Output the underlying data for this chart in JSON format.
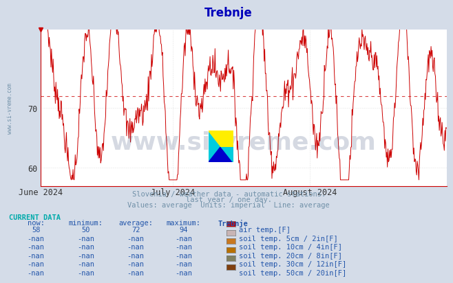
{
  "title": "Trebnje",
  "subtitle1": "Slovenia / weather data - automatic stations.",
  "subtitle2": "last year / one day.",
  "subtitle3": "Values: average  Units: imperial  Line: average",
  "ylabel_text": "www.si-vreme.com",
  "bg_color": "#d4dce8",
  "plot_bg_color": "#ffffff",
  "line_color": "#cc0000",
  "avg_line_color": "#cc0000",
  "avg_value": 72,
  "ymin": 57,
  "ymax": 83,
  "yticks": [
    60,
    70
  ],
  "xmin": 0,
  "xmax": 92,
  "title_color": "#0000bb",
  "subtitle_color": "#7090a8",
  "axis_color": "#cc0000",
  "grid_color": "#cccccc",
  "watermark_text": "www.si-vreme.com",
  "watermark_color": "#1a3060",
  "watermark_alpha": 0.18,
  "current_data_label": "CURRENT DATA",
  "col_headers": [
    "now:",
    "minimum:",
    "average:",
    "maximum:",
    "Trebnje"
  ],
  "rows": [
    {
      "now": "58",
      "minimum": "50",
      "average": "72",
      "maximum": "94",
      "color": "#cc0000",
      "label": "air temp.[F]"
    },
    {
      "now": "-nan",
      "minimum": "-nan",
      "average": "-nan",
      "maximum": "-nan",
      "color": "#c8b4b4",
      "label": "soil temp. 5cm / 2in[F]"
    },
    {
      "now": "-nan",
      "minimum": "-nan",
      "average": "-nan",
      "maximum": "-nan",
      "color": "#c87820",
      "label": "soil temp. 10cm / 4in[F]"
    },
    {
      "now": "-nan",
      "minimum": "-nan",
      "average": "-nan",
      "maximum": "-nan",
      "color": "#b87000",
      "label": "soil temp. 20cm / 8in[F]"
    },
    {
      "now": "-nan",
      "minimum": "-nan",
      "average": "-nan",
      "maximum": "-nan",
      "color": "#808060",
      "label": "soil temp. 30cm / 12in[F]"
    },
    {
      "now": "-nan",
      "minimum": "-nan",
      "average": "-nan",
      "maximum": "-nan",
      "color": "#804010",
      "label": "soil temp. 50cm / 20in[F]"
    }
  ],
  "xtick_positions": [
    0,
    30,
    61
  ],
  "xtick_labels": [
    "June 2024",
    "July 2024",
    "August 2024"
  ]
}
